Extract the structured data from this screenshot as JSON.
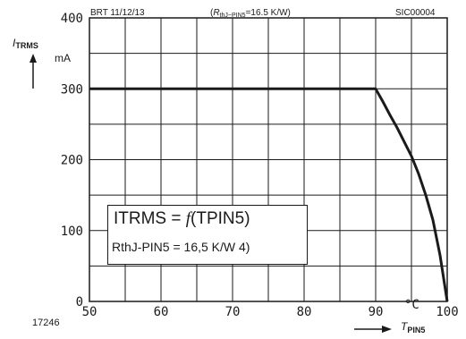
{
  "header": {
    "left": "BRT 11/12/13",
    "middle_prefix": "(",
    "middle_var": "R",
    "middle_sub": "thJ−PIN5",
    "middle_value": "=16.5 K/W)",
    "right": "SIC00004"
  },
  "axes": {
    "y_symbol": "I",
    "y_sub": "TRMS",
    "y_unit": "mA",
    "x_unit": "°C",
    "x_symbol": "T",
    "x_sub": "PIN5"
  },
  "legend": {
    "line1_prefix": "ITRMS = ",
    "line1_func": "f",
    "line1_arg": "(TPIN5)",
    "line2": "RthJ-PIN5 = 16,5 K/W 4)"
  },
  "figure_number": "17246",
  "chart_data": {
    "type": "line",
    "xlabel": "TPIN5 °C",
    "ylabel": "ITRMS mA",
    "xlim": [
      50,
      100
    ],
    "ylim": [
      0,
      400
    ],
    "x_ticks": [
      "50",
      "60",
      "70",
      "80",
      "90",
      "100"
    ],
    "y_ticks": [
      "0",
      "100",
      "200",
      "300",
      "400"
    ],
    "grid": true,
    "series": [
      {
        "x": [
          50,
          90,
          91,
          92,
          93,
          94,
          95,
          96,
          97,
          98,
          99,
          100
        ],
        "y": [
          300,
          300,
          282,
          263,
          245,
          225,
          205,
          180,
          150,
          115,
          65,
          0
        ]
      }
    ]
  }
}
